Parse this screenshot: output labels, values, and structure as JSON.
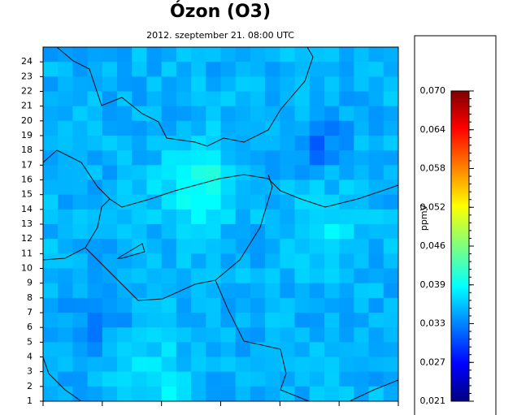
{
  "map": {
    "title": "Ózon (O3)",
    "subtitle": "2012. szeptember 21. 08:00 UTC",
    "rows": [
      1,
      2,
      3,
      4,
      5,
      6,
      7,
      8,
      9,
      10,
      11,
      12,
      13,
      14,
      15,
      16,
      17,
      18,
      19,
      20,
      21,
      22,
      23,
      24
    ],
    "rowlim": [
      1,
      25
    ],
    "colorbar": {
      "unit": "ppmV",
      "lim": [
        0.021,
        0.07
      ],
      "ticks": [
        {
          "value": 0.07,
          "label": "0,070"
        },
        {
          "value": 0.063875,
          "label": "0,064"
        },
        {
          "value": 0.05775,
          "label": "0,058"
        },
        {
          "value": 0.051625,
          "label": "0,052"
        },
        {
          "value": 0.0455,
          "label": "0,046"
        },
        {
          "value": 0.039375,
          "label": "0,039"
        },
        {
          "value": 0.03325,
          "label": "0,033"
        },
        {
          "value": 0.027125,
          "label": "0,027"
        },
        {
          "value": 0.021,
          "label": "0,021"
        }
      ]
    }
  }
}
